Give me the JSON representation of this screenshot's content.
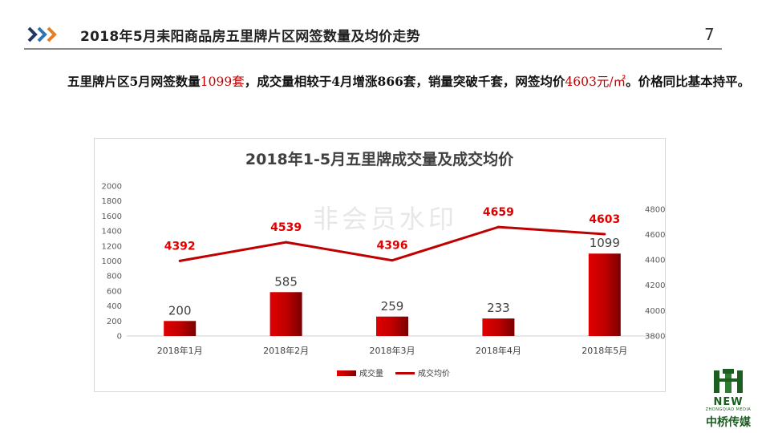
{
  "header": {
    "title": "2018年5月耒阳商品房五里牌片区网签数量及均价走势",
    "page_number": "7"
  },
  "summary": {
    "p1": "五里牌片区5月网签数量",
    "v1": "1099套",
    "p2": "，成交量相较于4月增涨866套，销量突破千套，网签均价",
    "v2": "4603元/㎡",
    "p3": "。价格同比基本持平。"
  },
  "watermark": "非会员水印",
  "logo": {
    "new": "NEW",
    "sub": "ZHONGQIAO MEDIA",
    "cn": "中桥传媒"
  },
  "colors": {
    "bar": "#c00000",
    "line": "#c00000",
    "label_price": "#e00000",
    "label_volume": "#404040",
    "chevron_dark": "#1f3864",
    "chevron_light": "#e67e22"
  },
  "chart_data": {
    "type": "bar",
    "title": "2018年1-5月五里牌成交量及成交均价",
    "categories": [
      "2018年1月",
      "2018年2月",
      "2018年3月",
      "2018年4月",
      "2018年5月"
    ],
    "series": [
      {
        "name": "成交量",
        "type": "bar",
        "axis": "left",
        "values": [
          200,
          585,
          259,
          233,
          1099
        ]
      },
      {
        "name": "成交均价",
        "type": "line",
        "axis": "right",
        "values": [
          4392,
          4539,
          4396,
          4659,
          4603
        ]
      }
    ],
    "y_left": {
      "min": 0,
      "max": 2000,
      "step": 200,
      "ticks": [
        "0",
        "200",
        "400",
        "600",
        "800",
        "1000",
        "1200",
        "1400",
        "1600",
        "1800",
        "2000"
      ]
    },
    "y_right": {
      "min": 3800,
      "max": 4900,
      "step": 200,
      "ticks": [
        "3800",
        "4000",
        "4200",
        "4400",
        "4600",
        "4800"
      ]
    },
    "legend_position": "bottom",
    "grid": false
  }
}
